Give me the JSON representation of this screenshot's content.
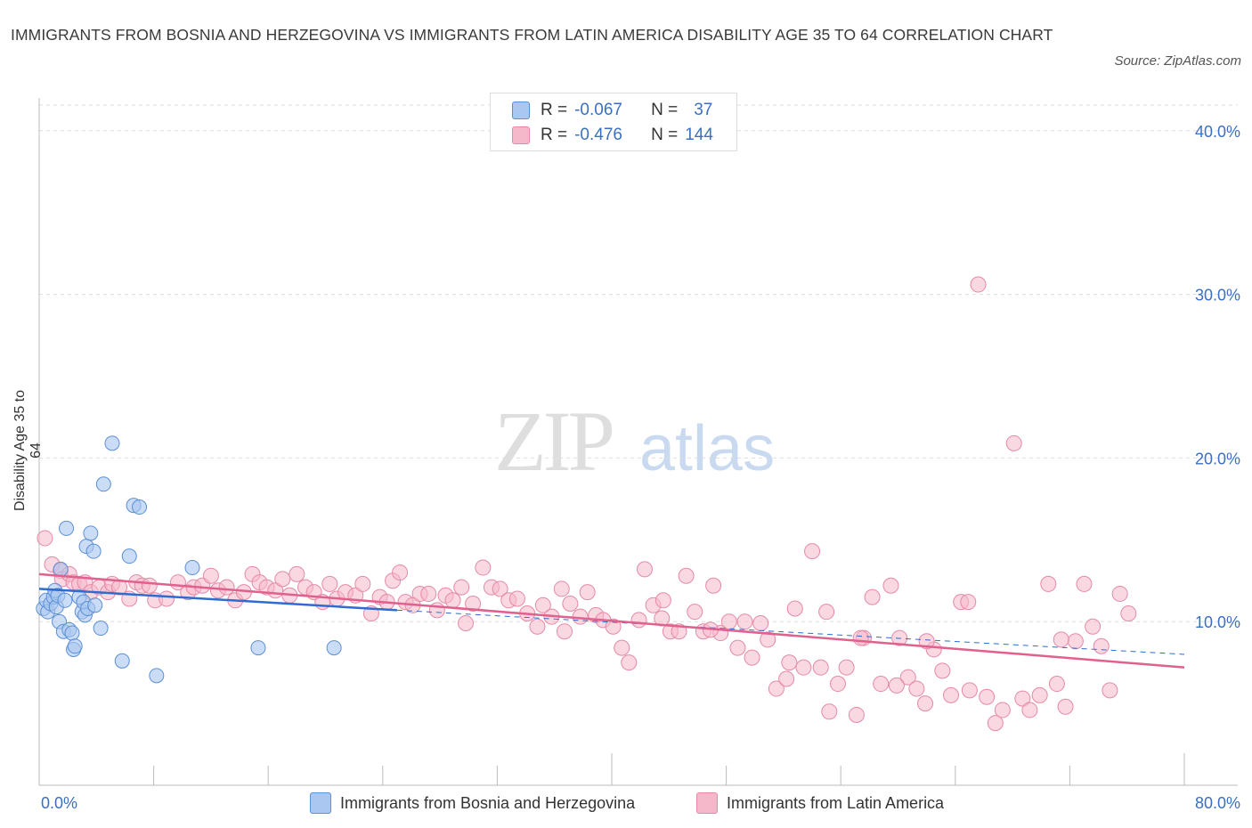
{
  "title": "IMMIGRANTS FROM BOSNIA AND HERZEGOVINA VS IMMIGRANTS FROM LATIN AMERICA DISABILITY AGE 35 TO 64 CORRELATION CHART",
  "source": "Source: ZipAtlas.com",
  "watermark": {
    "zip": "ZIP",
    "atlas": "atlas"
  },
  "legend": {
    "rows": [
      {
        "r_label": "R =",
        "r_value": "-0.067",
        "n_label": "N =",
        "n_value": "37",
        "color": "#a9c7f0"
      },
      {
        "r_label": "R =",
        "r_value": "-0.476",
        "n_label": "N =",
        "n_value": "144",
        "color": "#f5b8cb"
      }
    ]
  },
  "bottom_legend": [
    {
      "label": "Immigrants from Bosnia and Herzegovina",
      "color": "#a9c7f0"
    },
    {
      "label": "Immigrants from Latin America",
      "color": "#f5b8cb"
    }
  ],
  "colors": {
    "blue_fill": "#a9c7f0",
    "blue_stroke": "#5b8fd6",
    "blue_line": "#2f6bd0",
    "pink_fill": "#f5b8cb",
    "pink_stroke": "#e58aa7",
    "pink_line": "#e0608e",
    "axis_text": "#3b6fc4",
    "grid": "#dddddd"
  },
  "chart_data": {
    "type": "scatter",
    "title": "IMMIGRANTS FROM BOSNIA AND HERZEGOVINA VS IMMIGRANTS FROM LATIN AMERICA DISABILITY AGE 35 TO 64 CORRELATION CHART",
    "xlabel": "",
    "ylabel": "Disability Age 35 to 64",
    "xlim": [
      0,
      80
    ],
    "ylim": [
      0,
      42
    ],
    "x_tick_labels": [
      "0.0%",
      "80.0%"
    ],
    "y_ticks": [
      10,
      20,
      30,
      40
    ],
    "y_tick_labels": [
      "10.0%",
      "20.0%",
      "30.0%",
      "40.0%"
    ],
    "grid": true,
    "legend_position": "top-center",
    "series": [
      {
        "name": "Immigrants from Bosnia and Herzegovina",
        "points": [
          [
            0.3,
            10.8
          ],
          [
            0.5,
            11.3
          ],
          [
            0.6,
            10.6
          ],
          [
            0.8,
            11.1
          ],
          [
            1.0,
            11.5
          ],
          [
            1.1,
            11.9
          ],
          [
            1.2,
            10.9
          ],
          [
            1.3,
            11.6
          ],
          [
            1.4,
            10.0
          ],
          [
            1.5,
            13.2
          ],
          [
            1.7,
            9.4
          ],
          [
            1.8,
            11.3
          ],
          [
            1.9,
            15.7
          ],
          [
            2.1,
            9.5
          ],
          [
            2.3,
            9.3
          ],
          [
            2.4,
            8.3
          ],
          [
            2.5,
            8.5
          ],
          [
            2.8,
            11.5
          ],
          [
            3.0,
            10.6
          ],
          [
            3.1,
            11.2
          ],
          [
            3.2,
            10.4
          ],
          [
            3.3,
            14.6
          ],
          [
            3.4,
            10.8
          ],
          [
            3.6,
            15.4
          ],
          [
            3.8,
            14.3
          ],
          [
            3.9,
            11.0
          ],
          [
            4.3,
            9.6
          ],
          [
            4.5,
            18.4
          ],
          [
            5.1,
            20.9
          ],
          [
            5.8,
            7.6
          ],
          [
            6.3,
            14.0
          ],
          [
            6.6,
            17.1
          ],
          [
            7.0,
            17.0
          ],
          [
            8.2,
            6.7
          ],
          [
            10.7,
            13.3
          ],
          [
            15.3,
            8.4
          ],
          [
            20.6,
            8.4
          ]
        ]
      },
      {
        "name": "Immigrants from Latin America",
        "points": [
          [
            0.4,
            15.1
          ],
          [
            0.9,
            13.5
          ],
          [
            1.5,
            13.1
          ],
          [
            1.6,
            12.6
          ],
          [
            2.1,
            12.9
          ],
          [
            2.4,
            12.4
          ],
          [
            2.8,
            12.3
          ],
          [
            3.2,
            12.4
          ],
          [
            3.6,
            11.8
          ],
          [
            4.2,
            12.1
          ],
          [
            4.8,
            11.8
          ],
          [
            5.1,
            12.3
          ],
          [
            5.6,
            12.1
          ],
          [
            6.3,
            11.4
          ],
          [
            6.8,
            12.4
          ],
          [
            7.2,
            12.2
          ],
          [
            7.7,
            12.2
          ],
          [
            8.1,
            11.3
          ],
          [
            8.9,
            11.4
          ],
          [
            9.7,
            12.4
          ],
          [
            10.4,
            11.8
          ],
          [
            10.8,
            12.1
          ],
          [
            11.4,
            12.2
          ],
          [
            12.0,
            12.8
          ],
          [
            12.5,
            11.9
          ],
          [
            13.1,
            12.1
          ],
          [
            13.7,
            11.3
          ],
          [
            14.3,
            11.8
          ],
          [
            14.9,
            12.9
          ],
          [
            15.4,
            12.4
          ],
          [
            15.9,
            12.1
          ],
          [
            16.5,
            11.9
          ],
          [
            17.0,
            12.6
          ],
          [
            17.5,
            11.6
          ],
          [
            18.0,
            12.9
          ],
          [
            18.6,
            12.1
          ],
          [
            19.2,
            11.8
          ],
          [
            19.8,
            11.2
          ],
          [
            20.3,
            12.3
          ],
          [
            20.8,
            11.4
          ],
          [
            21.4,
            11.8
          ],
          [
            22.1,
            11.6
          ],
          [
            22.6,
            12.3
          ],
          [
            23.2,
            10.5
          ],
          [
            23.8,
            11.5
          ],
          [
            24.3,
            11.2
          ],
          [
            24.7,
            12.5
          ],
          [
            25.2,
            13.0
          ],
          [
            25.6,
            11.2
          ],
          [
            26.1,
            11.0
          ],
          [
            26.6,
            11.7
          ],
          [
            27.2,
            11.7
          ],
          [
            27.8,
            10.7
          ],
          [
            28.4,
            11.6
          ],
          [
            28.9,
            11.3
          ],
          [
            29.5,
            12.1
          ],
          [
            29.8,
            9.9
          ],
          [
            30.3,
            11.1
          ],
          [
            31.0,
            13.3
          ],
          [
            31.6,
            12.1
          ],
          [
            32.2,
            12.0
          ],
          [
            32.8,
            11.3
          ],
          [
            33.4,
            11.4
          ],
          [
            34.1,
            10.5
          ],
          [
            34.8,
            9.7
          ],
          [
            35.2,
            11.0
          ],
          [
            35.8,
            10.3
          ],
          [
            36.5,
            12.0
          ],
          [
            37.1,
            11.1
          ],
          [
            37.8,
            10.3
          ],
          [
            38.3,
            11.8
          ],
          [
            38.9,
            10.4
          ],
          [
            39.4,
            10.1
          ],
          [
            40.1,
            9.7
          ],
          [
            40.7,
            8.4
          ],
          [
            41.2,
            7.5
          ],
          [
            41.9,
            10.1
          ],
          [
            42.3,
            13.2
          ],
          [
            42.9,
            11.0
          ],
          [
            43.5,
            10.2
          ],
          [
            44.1,
            9.4
          ],
          [
            44.7,
            9.4
          ],
          [
            45.2,
            12.8
          ],
          [
            45.8,
            10.6
          ],
          [
            46.4,
            9.4
          ],
          [
            47.1,
            12.2
          ],
          [
            47.6,
            9.3
          ],
          [
            48.2,
            10.0
          ],
          [
            48.8,
            8.4
          ],
          [
            49.3,
            10.0
          ],
          [
            49.8,
            7.8
          ],
          [
            50.4,
            9.9
          ],
          [
            50.9,
            8.9
          ],
          [
            51.5,
            5.9
          ],
          [
            52.2,
            6.5
          ],
          [
            52.8,
            10.8
          ],
          [
            53.4,
            7.2
          ],
          [
            54.0,
            14.3
          ],
          [
            54.6,
            7.2
          ],
          [
            55.2,
            4.5
          ],
          [
            55.8,
            6.2
          ],
          [
            56.4,
            7.2
          ],
          [
            57.1,
            4.3
          ],
          [
            57.6,
            9.0
          ],
          [
            58.2,
            11.5
          ],
          [
            58.8,
            6.2
          ],
          [
            59.5,
            12.2
          ],
          [
            60.1,
            9.0
          ],
          [
            60.7,
            6.6
          ],
          [
            61.3,
            5.9
          ],
          [
            61.9,
            5.0
          ],
          [
            62.5,
            8.3
          ],
          [
            63.1,
            7.0
          ],
          [
            63.7,
            5.5
          ],
          [
            64.4,
            11.2
          ],
          [
            65.0,
            5.8
          ],
          [
            65.6,
            30.6
          ],
          [
            66.2,
            5.4
          ],
          [
            66.8,
            3.8
          ],
          [
            67.3,
            4.6
          ],
          [
            68.1,
            20.9
          ],
          [
            68.7,
            5.3
          ],
          [
            69.2,
            4.6
          ],
          [
            69.9,
            5.5
          ],
          [
            70.5,
            12.3
          ],
          [
            71.1,
            6.2
          ],
          [
            71.7,
            4.8
          ],
          [
            72.4,
            8.8
          ],
          [
            73.0,
            12.3
          ],
          [
            73.6,
            9.7
          ],
          [
            74.2,
            8.5
          ],
          [
            74.8,
            5.8
          ],
          [
            75.5,
            11.7
          ],
          [
            76.1,
            10.5
          ],
          [
            55.0,
            10.6
          ],
          [
            52.4,
            7.5
          ],
          [
            59.9,
            6.1
          ],
          [
            62.0,
            8.8
          ],
          [
            46.9,
            9.5
          ],
          [
            43.6,
            11.3
          ],
          [
            64.9,
            11.2
          ],
          [
            57.4,
            9.0
          ],
          [
            71.4,
            8.9
          ],
          [
            36.7,
            9.4
          ]
        ]
      }
    ],
    "trendlines": [
      {
        "series": "Immigrants from Bosnia and Herzegovina",
        "x": [
          0,
          25
        ],
        "y": [
          12.0,
          10.7
        ],
        "style": "solid"
      },
      {
        "series": "Immigrants from Bosnia and Herzegovina",
        "x": [
          25,
          80
        ],
        "y": [
          10.7,
          8.0
        ],
        "style": "dashed"
      },
      {
        "series": "Immigrants from Latin America",
        "x": [
          0,
          80
        ],
        "y": [
          12.9,
          7.2
        ],
        "style": "solid"
      }
    ]
  }
}
